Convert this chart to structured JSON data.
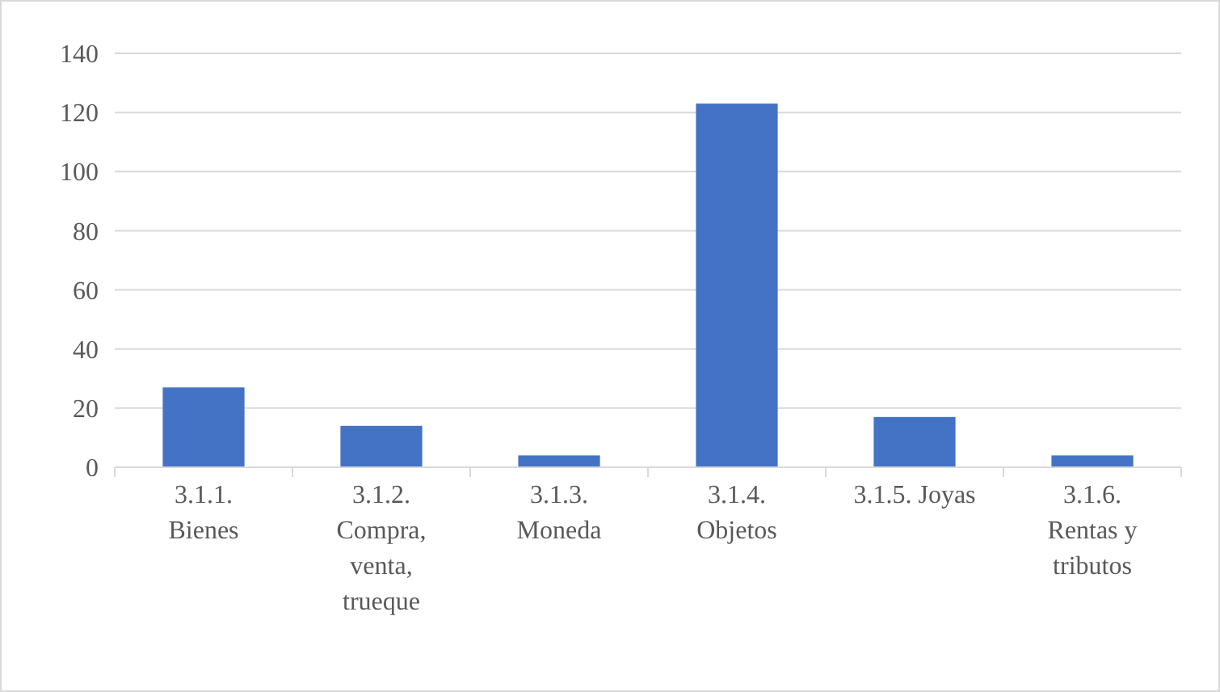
{
  "chart_data": {
    "type": "bar",
    "categories": [
      "3.1.1. Bienes",
      "3.1.2. Compra, venta, trueque",
      "3.1.3. Moneda",
      "3.1.4. Objetos",
      "3.1.5. Joyas",
      "3.1.6. Rentas y tributos"
    ],
    "values": [
      27,
      14,
      4,
      123,
      17,
      4
    ],
    "color": "#4472c4",
    "ylim": [
      0,
      140
    ],
    "yticks": [
      0,
      20,
      40,
      60,
      80,
      100,
      120,
      140
    ],
    "grid": "y"
  }
}
